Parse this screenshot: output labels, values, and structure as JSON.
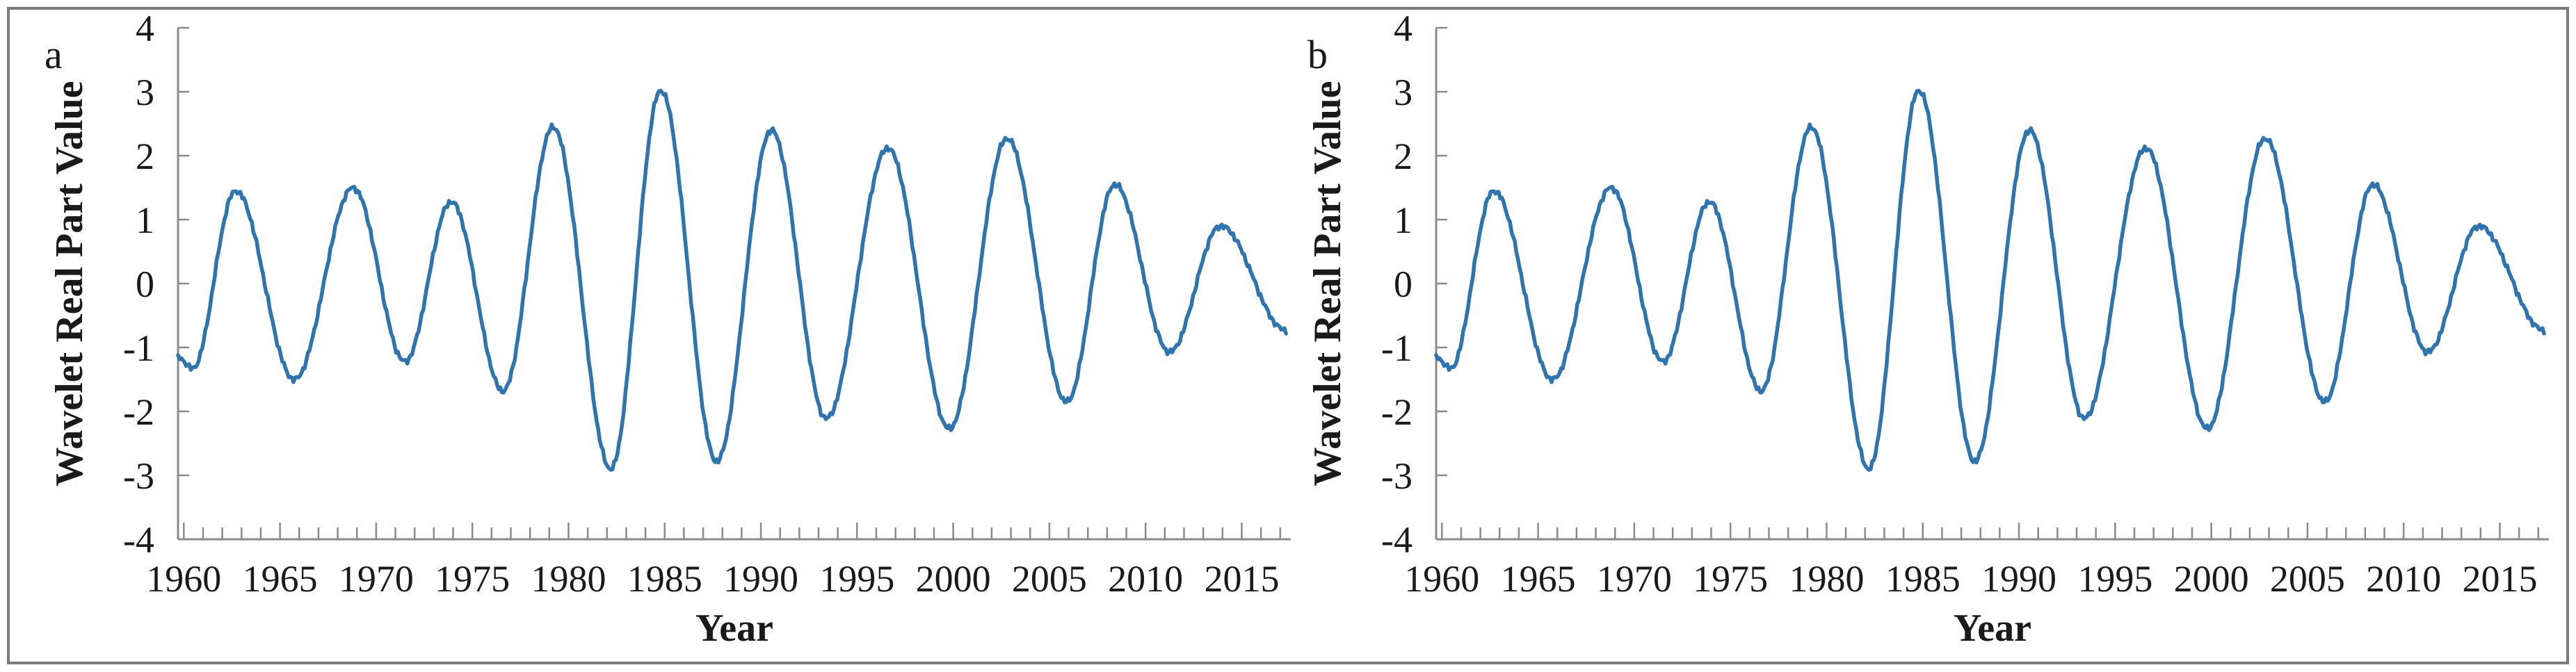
{
  "figure": {
    "type": "two-panel wavelet real part line charts",
    "background": "#ffffff",
    "border_color": "#7a7a7a",
    "text_color": "#1a1a1a",
    "axis_color": "#8a8a8a"
  },
  "chart_data": [
    {
      "type": "line",
      "panel_label": "a",
      "title": "",
      "xlabel": "Year",
      "ylabel": "Wavelet Real Part Value",
      "xlim": [
        1959.7,
        2017.55
      ],
      "ylim": [
        -4,
        4
      ],
      "y_ticks": [
        4,
        3,
        2,
        1,
        0,
        -1,
        -2,
        -3,
        -4
      ],
      "x_tick_labels": [
        1960,
        1965,
        1970,
        1975,
        1980,
        1985,
        1990,
        1995,
        2000,
        2005,
        2010,
        2015
      ],
      "x_minor_tick_every_years": 1,
      "grid": false,
      "legend": null,
      "line_color": "#2e74b0",
      "series": [
        {
          "name": "wavelet real part",
          "keypoints_extrema": [
            [
              1959.7,
              -1.15
            ],
            [
              1960.45,
              -1.33
            ],
            [
              1962.7,
              1.45
            ],
            [
              1965.75,
              -1.5
            ],
            [
              1968.8,
              1.5
            ],
            [
              1971.5,
              -1.22
            ],
            [
              1973.9,
              1.28
            ],
            [
              1976.6,
              -1.68
            ],
            [
              1979.2,
              2.45
            ],
            [
              1982.2,
              -2.9
            ],
            [
              1984.8,
              3.02
            ],
            [
              1987.7,
              -2.78
            ],
            [
              1990.55,
              2.4
            ],
            [
              1993.4,
              -2.11
            ],
            [
              1996.6,
              2.12
            ],
            [
              1999.8,
              -2.27
            ],
            [
              2002.8,
              2.27
            ],
            [
              2005.9,
              -1.85
            ],
            [
              2008.4,
              1.55
            ],
            [
              2011.25,
              -1.07
            ],
            [
              2013.9,
              0.9
            ],
            [
              2017.3,
              -0.73
            ]
          ]
        }
      ]
    },
    {
      "type": "line",
      "panel_label": "b",
      "title": "",
      "xlabel": "Year",
      "ylabel": "Wavelet Real Part Value",
      "xlim": [
        1959.7,
        2017.55
      ],
      "ylim": [
        -4,
        4
      ],
      "y_ticks": [
        4,
        3,
        2,
        1,
        0,
        -1,
        -2,
        -3,
        -4
      ],
      "x_tick_labels": [
        1960,
        1965,
        1970,
        1975,
        1980,
        1985,
        1990,
        1995,
        2000,
        2005,
        2010,
        2015
      ],
      "x_minor_tick_every_years": 1,
      "grid": false,
      "legend": null,
      "line_color": "#2e74b0",
      "series": [
        {
          "name": "wavelet real part",
          "keypoints_extrema": [
            [
              1959.7,
              -1.15
            ],
            [
              1960.45,
              -1.33
            ],
            [
              1962.7,
              1.45
            ],
            [
              1965.75,
              -1.5
            ],
            [
              1968.8,
              1.5
            ],
            [
              1971.5,
              -1.22
            ],
            [
              1973.9,
              1.28
            ],
            [
              1976.6,
              -1.68
            ],
            [
              1979.2,
              2.45
            ],
            [
              1982.2,
              -2.9
            ],
            [
              1984.8,
              3.02
            ],
            [
              1987.7,
              -2.78
            ],
            [
              1990.55,
              2.4
            ],
            [
              1993.4,
              -2.11
            ],
            [
              1996.6,
              2.12
            ],
            [
              1999.8,
              -2.27
            ],
            [
              2002.8,
              2.27
            ],
            [
              2005.9,
              -1.85
            ],
            [
              2008.4,
              1.55
            ],
            [
              2011.25,
              -1.07
            ],
            [
              2013.9,
              0.9
            ],
            [
              2017.3,
              -0.73
            ]
          ]
        }
      ]
    }
  ]
}
